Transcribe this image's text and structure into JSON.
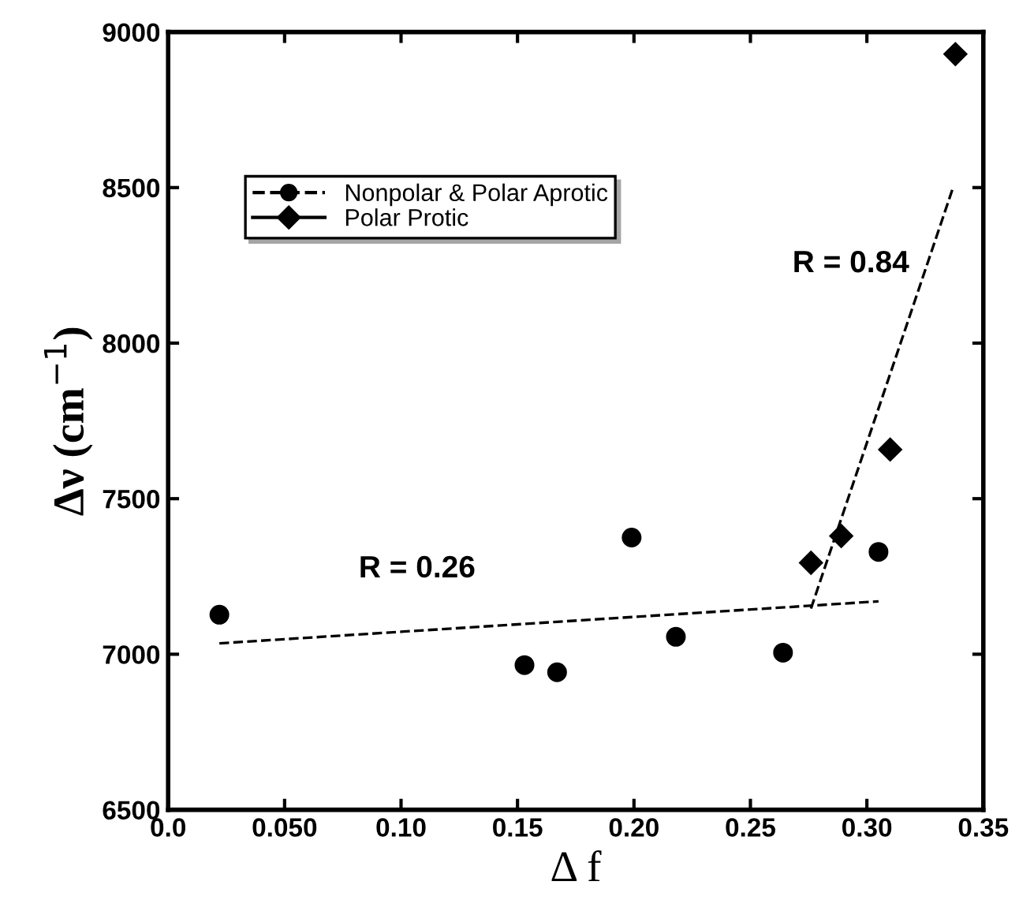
{
  "chart_data": {
    "type": "scatter",
    "xlabel": "Δ f",
    "ylabel": "Δν (cm$^{−1}$)",
    "xlim": [
      0,
      0.35
    ],
    "ylim": [
      6500,
      9000
    ],
    "xticks": [
      {
        "value": 0,
        "label": "0.0"
      },
      {
        "value": 0.05,
        "label": "0.050"
      },
      {
        "value": 0.1,
        "label": "0.10"
      },
      0.15,
      {
        "value": 0.2,
        "label": "0.20"
      },
      0.25,
      {
        "value": 0.3,
        "label": "0.30"
      },
      0.35
    ],
    "yticks": [
      6500,
      7000,
      7500,
      8000,
      8500,
      9000
    ],
    "grid": false,
    "legend": "top left",
    "series": [
      {
        "name": "Nonpolar & Polar Aprotic",
        "color": "#000000",
        "marker": "circle",
        "line_style": "dashed",
        "x": [
          0.022,
          0.153,
          0.167,
          0.199,
          0.218,
          0.264,
          0.305
        ],
        "values": [
          7127,
          6965,
          6942,
          7375,
          7056,
          7005,
          7329
        ]
      },
      {
        "name": "Polar Protic",
        "color": "#000000",
        "marker": "diamond",
        "line_style": "solid",
        "x": [
          0.276,
          0.289,
          0.31,
          0.338
        ],
        "values": [
          7294,
          7380,
          7658,
          8929
        ]
      },
      {
        "type": "line",
        "color": "#000000",
        "line_style": "dashed",
        "x": [
          0.022,
          0.305
        ],
        "values": [
          7035,
          7170
        ]
      },
      {
        "type": "line",
        "color": "#000000",
        "line_style": "dashed",
        "x": [
          0.276,
          0.337
        ],
        "values": [
          7147,
          8500
        ]
      }
    ],
    "annotations": [
      "R = 0.26",
      "R = 0.84"
    ]
  }
}
